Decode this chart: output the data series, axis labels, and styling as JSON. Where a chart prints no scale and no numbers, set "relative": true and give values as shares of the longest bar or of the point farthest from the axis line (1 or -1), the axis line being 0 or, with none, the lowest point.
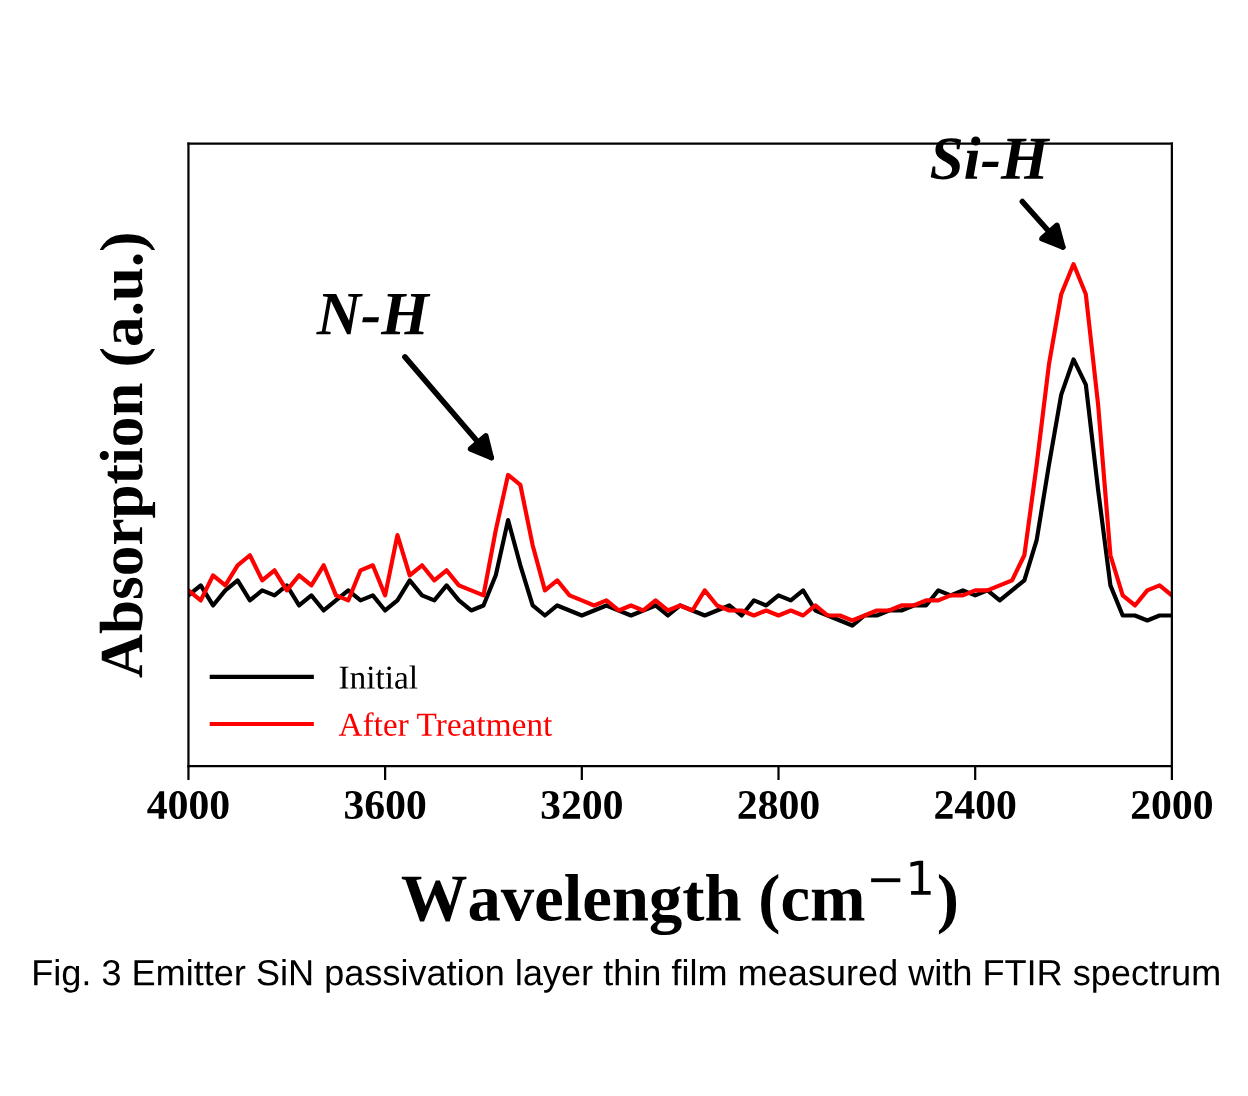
{
  "chart_data": {
    "type": "line",
    "relative": true,
    "xlabel": "Wavelength (cm$^{−1}$)",
    "ylabel": "Absorption (a.u.)",
    "x": [
      4000,
      3975,
      3950,
      3925,
      3900,
      3875,
      3850,
      3825,
      3800,
      3775,
      3750,
      3725,
      3700,
      3675,
      3650,
      3625,
      3600,
      3575,
      3550,
      3525,
      3500,
      3475,
      3450,
      3425,
      3400,
      3375,
      3350,
      3325,
      3300,
      3275,
      3250,
      3225,
      3200,
      3175,
      3150,
      3125,
      3100,
      3075,
      3050,
      3025,
      3000,
      2975,
      2950,
      2925,
      2900,
      2875,
      2850,
      2825,
      2800,
      2775,
      2750,
      2725,
      2700,
      2675,
      2650,
      2625,
      2600,
      2575,
      2550,
      2525,
      2500,
      2475,
      2450,
      2425,
      2400,
      2375,
      2350,
      2325,
      2300,
      2275,
      2250,
      2225,
      2200,
      2175,
      2150,
      2125,
      2100,
      2075,
      2050,
      2025,
      2000
    ],
    "xlim": [
      4000,
      2000
    ],
    "xticks": [
      4000,
      3600,
      3200,
      2800,
      2400,
      2000
    ],
    "series": [
      {
        "name": "Initial",
        "color": "#000000",
        "values": [
          0.34,
          0.36,
          0.32,
          0.35,
          0.37,
          0.33,
          0.35,
          0.34,
          0.36,
          0.32,
          0.34,
          0.31,
          0.33,
          0.35,
          0.33,
          0.34,
          0.31,
          0.33,
          0.37,
          0.34,
          0.33,
          0.36,
          0.33,
          0.31,
          0.32,
          0.38,
          0.49,
          0.4,
          0.32,
          0.3,
          0.32,
          0.31,
          0.3,
          0.31,
          0.32,
          0.31,
          0.3,
          0.31,
          0.32,
          0.3,
          0.32,
          0.31,
          0.3,
          0.31,
          0.32,
          0.3,
          0.33,
          0.32,
          0.34,
          0.33,
          0.35,
          0.31,
          0.3,
          0.29,
          0.28,
          0.3,
          0.3,
          0.31,
          0.31,
          0.32,
          0.32,
          0.35,
          0.34,
          0.35,
          0.34,
          0.35,
          0.33,
          0.35,
          0.37,
          0.45,
          0.6,
          0.74,
          0.81,
          0.76,
          0.55,
          0.36,
          0.3,
          0.3,
          0.29,
          0.3,
          0.3
        ]
      },
      {
        "name": "After Treatment",
        "color": "#ff0000",
        "values": [
          0.35,
          0.33,
          0.38,
          0.36,
          0.4,
          0.42,
          0.37,
          0.39,
          0.35,
          0.38,
          0.36,
          0.4,
          0.34,
          0.33,
          0.39,
          0.4,
          0.34,
          0.46,
          0.38,
          0.4,
          0.37,
          0.39,
          0.36,
          0.35,
          0.34,
          0.47,
          0.58,
          0.56,
          0.44,
          0.35,
          0.37,
          0.34,
          0.33,
          0.32,
          0.33,
          0.31,
          0.32,
          0.31,
          0.33,
          0.31,
          0.32,
          0.31,
          0.35,
          0.32,
          0.31,
          0.31,
          0.3,
          0.31,
          0.3,
          0.31,
          0.3,
          0.32,
          0.3,
          0.3,
          0.29,
          0.3,
          0.31,
          0.31,
          0.32,
          0.32,
          0.33,
          0.33,
          0.34,
          0.34,
          0.35,
          0.35,
          0.36,
          0.37,
          0.42,
          0.6,
          0.8,
          0.94,
          1.0,
          0.94,
          0.72,
          0.42,
          0.34,
          0.32,
          0.35,
          0.36,
          0.34
        ]
      }
    ],
    "annotations": [
      {
        "text": "N-H",
        "x": 3354,
        "y": 0.58
      },
      {
        "text": "Si-H",
        "x": 2191,
        "y": 1.0
      },
      "Fig. 3 Emitter SiN passivation layer thin film measured with FTIR spectrum"
    ],
    "legend": "bottom left",
    "grid": false,
    "line_style": "solid",
    "marker": "none"
  }
}
